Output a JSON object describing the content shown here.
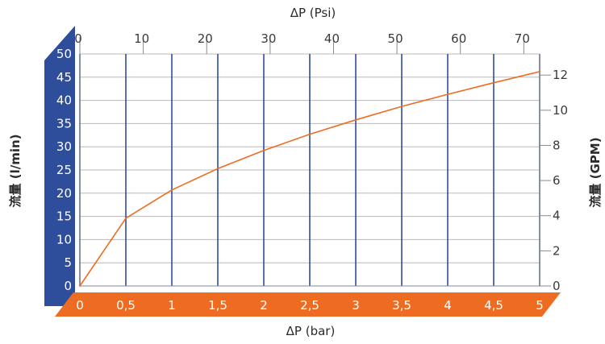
{
  "colors": {
    "flow_band": "#2e4d9b",
    "bar_band": "#ee6c22",
    "curve": "#ee6c22",
    "grid_major": "#2e4d9b",
    "grid_minor": "#b8b8b8",
    "frame": "#8a8a8a"
  },
  "chart_data": {
    "type": "line",
    "title": "",
    "grid": true,
    "axes": {
      "x_bottom": {
        "label": "ΔP (bar)",
        "range": [
          0,
          5
        ],
        "ticks": [
          "0",
          "0,5",
          "1",
          "1,5",
          "2",
          "2,5",
          "3",
          "3,5",
          "4",
          "4,5",
          "5"
        ]
      },
      "x_top": {
        "label": "ΔP (Psi)",
        "range": [
          0,
          72.5
        ],
        "ticks": [
          "0",
          "10",
          "20",
          "30",
          "40",
          "50",
          "60",
          "70"
        ]
      },
      "y_left": {
        "label": "流量 (l/min)",
        "range": [
          0,
          50
        ],
        "ticks": [
          "0",
          "5",
          "10",
          "15",
          "20",
          "25",
          "30",
          "35",
          "40",
          "45",
          "50"
        ]
      },
      "y_right": {
        "label": "流量 (GPM)",
        "range": [
          0,
          13.2
        ],
        "ticks": [
          "0",
          "2",
          "4",
          "6",
          "8",
          "10",
          "12"
        ]
      }
    },
    "series": [
      {
        "x": [
          0,
          0.5,
          1,
          1.5,
          2,
          2.5,
          3,
          3.5,
          4,
          4.5,
          5
        ],
        "y": [
          0,
          14.6,
          20.7,
          25.3,
          29.2,
          32.7,
          35.8,
          38.7,
          41.3,
          43.8,
          46.2
        ]
      }
    ]
  }
}
